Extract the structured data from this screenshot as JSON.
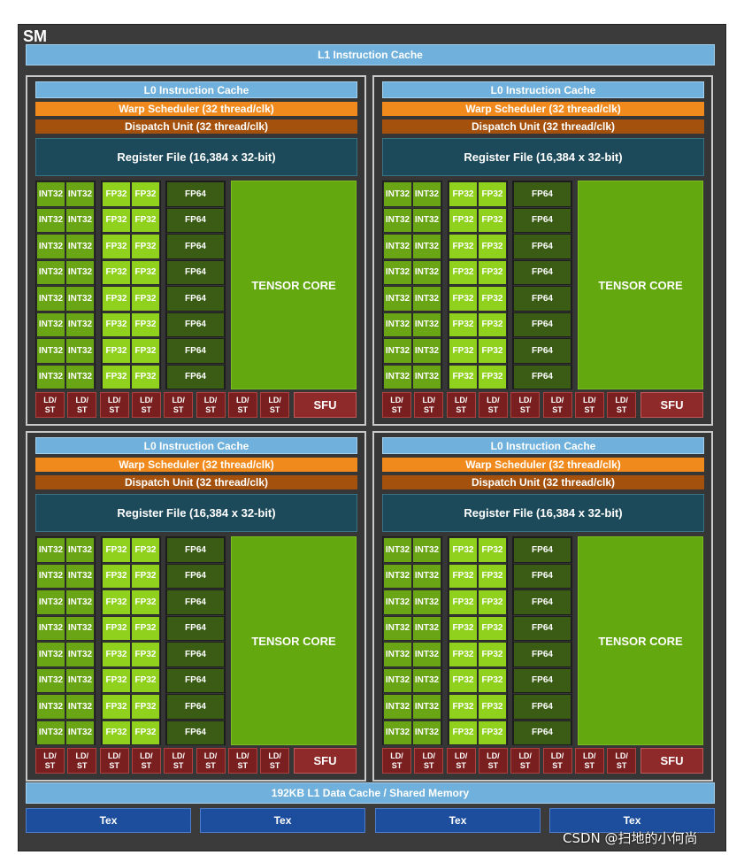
{
  "sm_label": "SM",
  "l1_instruction_cache": "L1 Instruction Cache",
  "l1_data_cache": "192KB L1 Data Cache / Shared Memory",
  "tex_units": [
    "Tex",
    "Tex",
    "Tex",
    "Tex"
  ],
  "partition": {
    "l0_cache": "L0 Instruction Cache",
    "warp_scheduler": "Warp Scheduler (32 thread/clk)",
    "dispatch_unit": "Dispatch Unit (32 thread/clk)",
    "register_file": "Register File (16,384 x 32-bit)",
    "int32_label": "INT32",
    "fp32_label": "FP32",
    "fp64_label": "FP64",
    "tensor_core": "TENSOR CORE",
    "ldst_top": "LD/",
    "ldst_bottom": "ST",
    "sfu": "SFU",
    "rows": 8,
    "ldst_count": 8
  },
  "partition_count": 4,
  "colors": {
    "int32": "#6aa516",
    "fp32": "#8fd11c",
    "fp64": "#3a5c14",
    "tensor": "#62a80e",
    "warp_scheduler": "#f08a1c",
    "dispatch_unit": "#a4510d",
    "register_file": "#1c4a5a",
    "cache": "#6fb1dc",
    "tex": "#1d4e9e",
    "ldst": "#7a1f1f"
  },
  "watermark": "CSDN @扫地的小何尚"
}
